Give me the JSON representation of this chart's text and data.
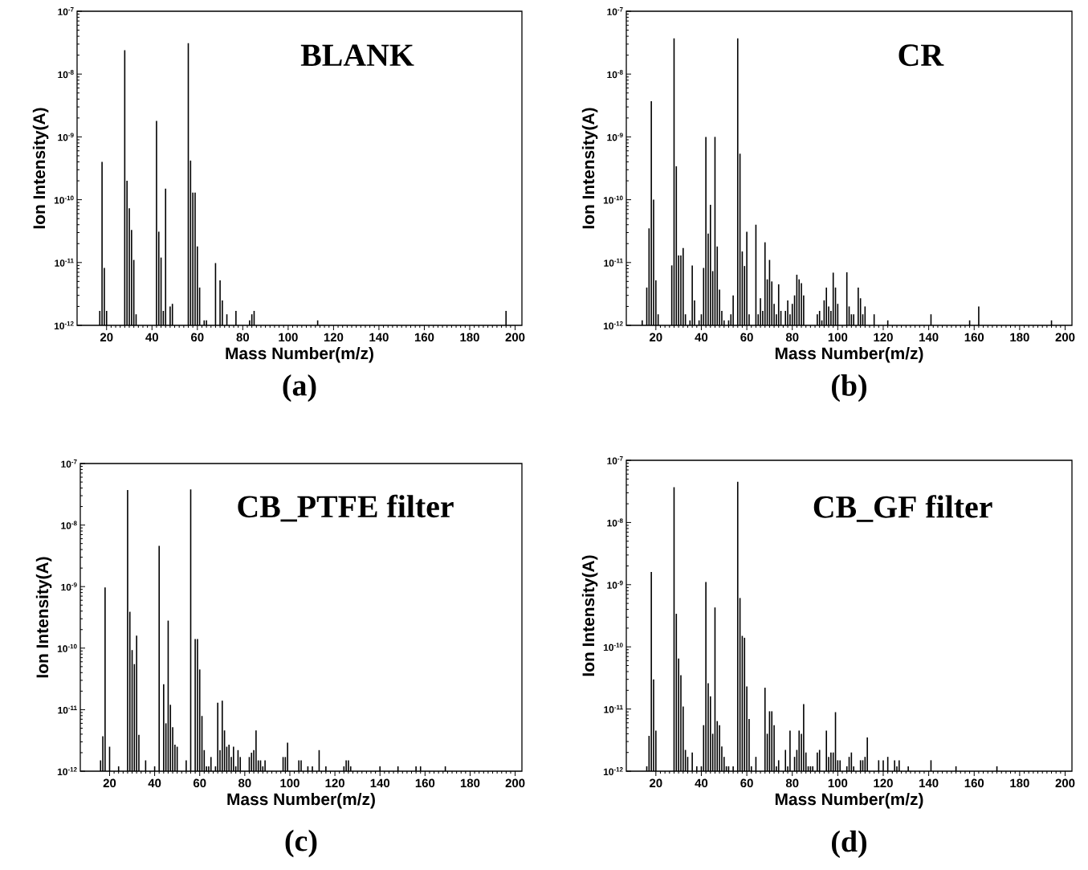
{
  "chart_data": [
    {
      "type": "bar",
      "title": "BLANK",
      "xlabel": "Mass Number(m/z)",
      "ylabel": "Ion Intensity(A)",
      "annotations": [
        "(a)"
      ],
      "color": "#000000",
      "log": true,
      "x": [
        17,
        18,
        19,
        20,
        28,
        29,
        30,
        31,
        32,
        33,
        42,
        43,
        44,
        45,
        46,
        48,
        49,
        56,
        57,
        58,
        59,
        60,
        61,
        63,
        64,
        68,
        70,
        71,
        73,
        77,
        83,
        84,
        85,
        113,
        196
      ],
      "values": [
        1.7e-12,
        4e-10,
        8.2e-12,
        1.7e-12,
        2.4e-08,
        2e-10,
        7.3e-11,
        3.3e-11,
        1.1e-11,
        1.5e-12,
        1.8e-09,
        3.1e-11,
        1.2e-11,
        1.7e-12,
        1.5e-10,
        2e-12,
        2.2e-12,
        3.1e-08,
        4.2e-10,
        1.3e-10,
        1.3e-10,
        1.8e-11,
        4e-12,
        1.2e-12,
        1.2e-12,
        9.8e-12,
        5.2e-12,
        2.5e-12,
        1.5e-12,
        1.7e-12,
        1.2e-12,
        1.5e-12,
        1.7e-12,
        1.2e-12,
        1.7e-12
      ],
      "xlim": [
        7,
        203
      ],
      "xticks": [
        20,
        40,
        60,
        80,
        100,
        120,
        140,
        160,
        180,
        200
      ],
      "ylim": [
        1e-12,
        1e-07
      ],
      "yticks": [
        {
          "value": 1e-12,
          "label": "10$^{-12}$"
        },
        {
          "value": 1e-11,
          "label": "10$^{-11}$"
        },
        {
          "value": 1e-10,
          "label": "10$^{-10}$"
        },
        {
          "value": 1e-09,
          "label": "10$^{-9}$"
        },
        {
          "value": 1e-08,
          "label": "10$^{-8}$"
        },
        {
          "value": 1e-07,
          "label": "10$^{-7}$"
        }
      ]
    },
    {
      "type": "bar",
      "title": "CR",
      "xlabel": "Mass Number(m/z)",
      "ylabel": "Ion Intensity(A)",
      "annotations": [
        "(b)"
      ],
      "color": "#000000",
      "log": true,
      "x": [
        14,
        16,
        17,
        18,
        19,
        20,
        21,
        27,
        28,
        29,
        30,
        31,
        32,
        33,
        35,
        36,
        37,
        39,
        40,
        41,
        42,
        43,
        44,
        45,
        46,
        47,
        48,
        49,
        50,
        52,
        53,
        54,
        56,
        57,
        58,
        59,
        60,
        61,
        64,
        65,
        66,
        67,
        68,
        69,
        70,
        71,
        72,
        73,
        74,
        75,
        77,
        78,
        79,
        80,
        81,
        82,
        83,
        84,
        85,
        91,
        92,
        93,
        94,
        95,
        96,
        97,
        98,
        99,
        100,
        104,
        105,
        106,
        107,
        109,
        110,
        111,
        112,
        116,
        122,
        141,
        158,
        162,
        194
      ],
      "values": [
        1.2e-12,
        4e-12,
        3.5e-11,
        3.7e-09,
        1e-10,
        5.2e-12,
        1.5e-12,
        9e-12,
        3.7e-08,
        3.4e-10,
        1.3e-11,
        1.3e-11,
        1.7e-11,
        1.5e-12,
        1.2e-12,
        9e-12,
        2.5e-12,
        1.2e-12,
        1.5e-12,
        8.2e-12,
        1e-09,
        2.9e-11,
        8.3e-11,
        7.3e-12,
        1e-09,
        1.8e-11,
        3.7e-12,
        1.7e-12,
        1.2e-12,
        1.2e-12,
        1.5e-12,
        3e-12,
        3.7e-08,
        5.4e-10,
        1.5e-11,
        8.8e-12,
        3.1e-11,
        1.5e-12,
        4e-11,
        1.5e-12,
        2.7e-12,
        1.7e-12,
        2.1e-11,
        5.4e-12,
        1.1e-11,
        5e-12,
        2.2e-12,
        1.5e-12,
        4.5e-12,
        1.7e-12,
        1.7e-12,
        2.5e-12,
        1.5e-12,
        2.2e-12,
        3e-12,
        6.4e-12,
        5.4e-12,
        4.7e-12,
        3e-12,
        1.5e-12,
        1.7e-12,
        1.2e-12,
        2.5e-12,
        4e-12,
        2e-12,
        1.7e-12,
        6.9e-12,
        4e-12,
        2.2e-12,
        7e-12,
        2e-12,
        1.5e-12,
        1.5e-12,
        4e-12,
        2.7e-12,
        1.5e-12,
        2e-12,
        1.5e-12,
        1.2e-12,
        1.5e-12,
        1.2e-12,
        2e-12,
        1.2e-12
      ],
      "xlim": [
        7,
        203
      ],
      "xticks": [
        20,
        40,
        60,
        80,
        100,
        120,
        140,
        160,
        180,
        200
      ],
      "ylim": [
        1e-12,
        1e-07
      ],
      "yticks": [
        {
          "value": 1e-12,
          "label": "10$^{-12}$"
        },
        {
          "value": 1e-11,
          "label": "10$^{-11}$"
        },
        {
          "value": 1e-10,
          "label": "10$^{-10}$"
        },
        {
          "value": 1e-09,
          "label": "10$^{-9}$"
        },
        {
          "value": 1e-08,
          "label": "10$^{-8}$"
        },
        {
          "value": 1e-07,
          "label": "10$^{-7}$"
        }
      ]
    },
    {
      "type": "bar",
      "title": "CB_PTFE filter",
      "xlabel": "Mass Number(m/z)",
      "ylabel": "Ion Intensity(A)",
      "annotations": [
        "(c)"
      ],
      "color": "#000000",
      "log": true,
      "x": [
        16,
        17,
        18,
        20,
        24,
        28,
        29,
        30,
        31,
        32,
        33,
        36,
        40,
        42,
        44,
        45,
        46,
        47,
        48,
        49,
        50,
        54,
        56,
        58,
        59,
        60,
        61,
        62,
        63,
        64,
        65,
        67,
        68,
        69,
        70,
        71,
        72,
        73,
        74,
        75,
        76,
        77,
        78,
        82,
        83,
        84,
        85,
        86,
        87,
        88,
        89,
        97,
        98,
        99,
        104,
        105,
        108,
        110,
        113,
        116,
        124,
        125,
        126,
        127,
        140,
        148,
        156,
        158,
        169
      ],
      "values": [
        1.5e-12,
        3.7e-12,
        9.7e-10,
        2.5e-12,
        1.2e-12,
        3.7e-08,
        3.9e-10,
        9.3e-11,
        5.5e-11,
        1.6e-10,
        3.9e-12,
        1.5e-12,
        1.2e-12,
        4.6e-09,
        2.6e-11,
        6e-12,
        2.8e-10,
        1.2e-11,
        5.2e-12,
        2.7e-12,
        2.5e-12,
        1.5e-12,
        3.8e-08,
        1.4e-10,
        1.4e-10,
        4.5e-11,
        7.9e-12,
        2.2e-12,
        1.2e-12,
        1.2e-12,
        1.7e-12,
        1.2e-12,
        1.3e-11,
        2.2e-12,
        1.4e-11,
        4.6e-12,
        2.5e-12,
        2.7e-12,
        1.7e-12,
        2.5e-12,
        1.2e-12,
        2.2e-12,
        1.7e-12,
        1.7e-12,
        2e-12,
        2.2e-12,
        4.6e-12,
        1.5e-12,
        1.5e-12,
        1.2e-12,
        1.5e-12,
        1.7e-12,
        1.7e-12,
        2.9e-12,
        1.5e-12,
        1.5e-12,
        1.2e-12,
        1.2e-12,
        2.2e-12,
        1.2e-12,
        1.2e-12,
        1.5e-12,
        1.5e-12,
        1.2e-12,
        1.2e-12,
        1.2e-12,
        1.2e-12,
        1.2e-12,
        1.2e-12
      ],
      "xlim": [
        7,
        203
      ],
      "xticks": [
        20,
        40,
        60,
        80,
        100,
        120,
        140,
        160,
        180,
        200
      ],
      "ylim": [
        1e-12,
        1e-07
      ],
      "yticks": [
        {
          "value": 1e-12,
          "label": "10$^{-12}$"
        },
        {
          "value": 1e-11,
          "label": "10$^{-11}$"
        },
        {
          "value": 1e-10,
          "label": "10$^{-10}$"
        },
        {
          "value": 1e-09,
          "label": "10$^{-9}$"
        },
        {
          "value": 1e-08,
          "label": "10$^{-8}$"
        },
        {
          "value": 1e-07,
          "label": "10$^{-7}$"
        }
      ]
    },
    {
      "type": "bar",
      "title": "CB_GF filter",
      "xlabel": "Mass Number(m/z)",
      "ylabel": "Ion Intensity(A)",
      "annotations": [
        "(d)"
      ],
      "color": "#000000",
      "log": true,
      "x": [
        16,
        17,
        18,
        19,
        20,
        28,
        29,
        30,
        31,
        32,
        33,
        34,
        36,
        38,
        40,
        41,
        42,
        43,
        44,
        45,
        46,
        47,
        48,
        49,
        50,
        51,
        52,
        54,
        56,
        57,
        58,
        59,
        60,
        61,
        62,
        64,
        68,
        69,
        70,
        71,
        72,
        73,
        74,
        77,
        78,
        79,
        81,
        82,
        83,
        84,
        85,
        86,
        87,
        88,
        89,
        91,
        92,
        95,
        96,
        97,
        98,
        99,
        100,
        101,
        104,
        105,
        106,
        107,
        110,
        111,
        112,
        113,
        118,
        120,
        122,
        125,
        126,
        127,
        131,
        141,
        152,
        170
      ],
      "values": [
        1.2e-12,
        3.7e-12,
        1.6e-09,
        3e-11,
        4.5e-12,
        3.7e-08,
        3.4e-10,
        6.5e-11,
        3.5e-11,
        1.1e-11,
        2.2e-12,
        1.7e-12,
        2e-12,
        1.2e-12,
        1.2e-12,
        5.5e-12,
        1.1e-09,
        2.6e-11,
        1.6e-11,
        4e-12,
        4.3e-10,
        6.4e-12,
        5.5e-12,
        2.5e-12,
        1.7e-12,
        1.2e-12,
        1.2e-12,
        1.2e-12,
        4.5e-08,
        6.1e-10,
        1.5e-10,
        1.4e-10,
        2.3e-11,
        6.9e-12,
        1.2e-12,
        1.7e-12,
        2.2e-11,
        4e-12,
        9.2e-12,
        9.2e-12,
        5.5e-12,
        1.2e-12,
        1.5e-12,
        2.2e-12,
        1.2e-12,
        4.5e-12,
        1.7e-12,
        2.2e-12,
        4.5e-12,
        4e-12,
        1.2e-11,
        2e-12,
        1.2e-12,
        1.2e-12,
        1.2e-12,
        2e-12,
        2.2e-12,
        4.5e-12,
        1.7e-12,
        2e-12,
        2e-12,
        8.9e-12,
        1.5e-12,
        1.5e-12,
        1.2e-12,
        1.7e-12,
        2e-12,
        1.2e-12,
        1.5e-12,
        1.5e-12,
        1.7e-12,
        3.5e-12,
        1.5e-12,
        1.5e-12,
        1.7e-12,
        1.5e-12,
        1.2e-12,
        1.5e-12,
        1.2e-12,
        1.5e-12,
        1.2e-12,
        1.2e-12
      ],
      "xlim": [
        7,
        203
      ],
      "xticks": [
        20,
        40,
        60,
        80,
        100,
        120,
        140,
        160,
        180,
        200
      ],
      "ylim": [
        1e-12,
        1e-07
      ],
      "yticks": [
        {
          "value": 1e-12,
          "label": "10$^{-12}$"
        },
        {
          "value": 1e-11,
          "label": "10$^{-11}$"
        },
        {
          "value": 1e-10,
          "label": "10$^{-10}$"
        },
        {
          "value": 1e-09,
          "label": "10$^{-9}$"
        },
        {
          "value": 1e-08,
          "label": "10$^{-8}$"
        },
        {
          "value": 1e-07,
          "label": "10$^{-7}$"
        }
      ]
    }
  ]
}
